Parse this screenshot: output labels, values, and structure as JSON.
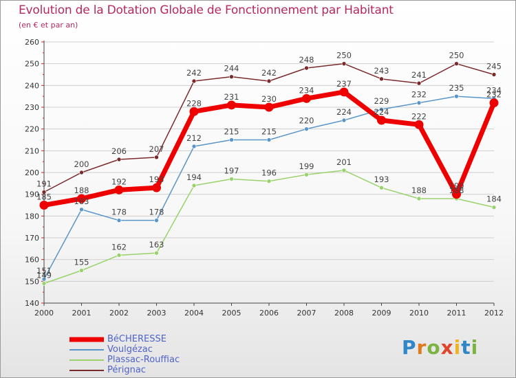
{
  "header": {
    "title": "Evolution de la Dotation Globale de Fonctionnement par Habitant",
    "subtitle": "(en € et par an)"
  },
  "logo": {
    "text": "Proxiti",
    "letter_colors": [
      "#2f86c8",
      "#e07a1c",
      "#7cb342",
      "#e0452c",
      "#f0b323",
      "#2f86c8",
      "#7cb342"
    ]
  },
  "chart_data": {
    "type": "line",
    "title": "Evolution de la Dotation Globale de Fonctionnement par Habitant",
    "subtitle": "(en € et par an)",
    "xlabel": "",
    "ylabel": "",
    "x": [
      "2000",
      "2001",
      "2002",
      "2003",
      "2004",
      "2005",
      "2006",
      "2007",
      "2008",
      "2009",
      "2010",
      "2011",
      "2012"
    ],
    "ylim": [
      140,
      260
    ],
    "yticks": [
      140,
      150,
      160,
      170,
      180,
      190,
      200,
      210,
      220,
      230,
      240,
      250,
      260
    ],
    "grid": "horizontal",
    "legend_position": "bottom-left",
    "series": [
      {
        "name": "Pérignac",
        "color": "#7a2a2a",
        "values": [
          191,
          200,
          206,
          207,
          242,
          244,
          242,
          248,
          250,
          243,
          241,
          250,
          245
        ],
        "labels": [
          "191",
          "200",
          "206",
          "207",
          "242",
          "244",
          "242",
          "248",
          "250",
          "243",
          "241",
          "250",
          "245"
        ]
      },
      {
        "name": "Voulgézac",
        "color": "#5a95c8",
        "values": [
          151,
          183,
          178,
          178,
          212,
          215,
          215,
          220,
          224,
          229,
          232,
          235,
          234
        ],
        "labels": [
          "151",
          "183",
          "178",
          "178",
          "212",
          "215",
          "215",
          "220",
          "224",
          "229",
          "232",
          "235",
          "234"
        ]
      },
      {
        "name": "Plassac-Rouffiac",
        "color": "#99d26b",
        "values": [
          149,
          155,
          162,
          163,
          194,
          197,
          196,
          199,
          201,
          193,
          188,
          188,
          184
        ],
        "labels": [
          "149",
          "155",
          "162",
          "163",
          "194",
          "197",
          "196",
          "199",
          "201",
          "193",
          "188",
          "188",
          "184"
        ]
      },
      {
        "name": "BéCHERESSE",
        "color": "#ee0000",
        "values": [
          185,
          188,
          192,
          193,
          228,
          231,
          230,
          234,
          237,
          224,
          222,
          190,
          232
        ],
        "labels": [
          "185",
          "188",
          "192",
          "193",
          "228",
          "231",
          "230",
          "234",
          "237",
          "224",
          "222",
          "190",
          "232"
        ]
      }
    ]
  },
  "legend": {
    "items": [
      {
        "name": "BéCHERESSE",
        "color": "#ee0000"
      },
      {
        "name": "Voulgézac",
        "color": "#5a95c8"
      },
      {
        "name": "Plassac-Rouffiac",
        "color": "#99d26b"
      },
      {
        "name": "Pérignac",
        "color": "#7a2a2a"
      }
    ]
  }
}
